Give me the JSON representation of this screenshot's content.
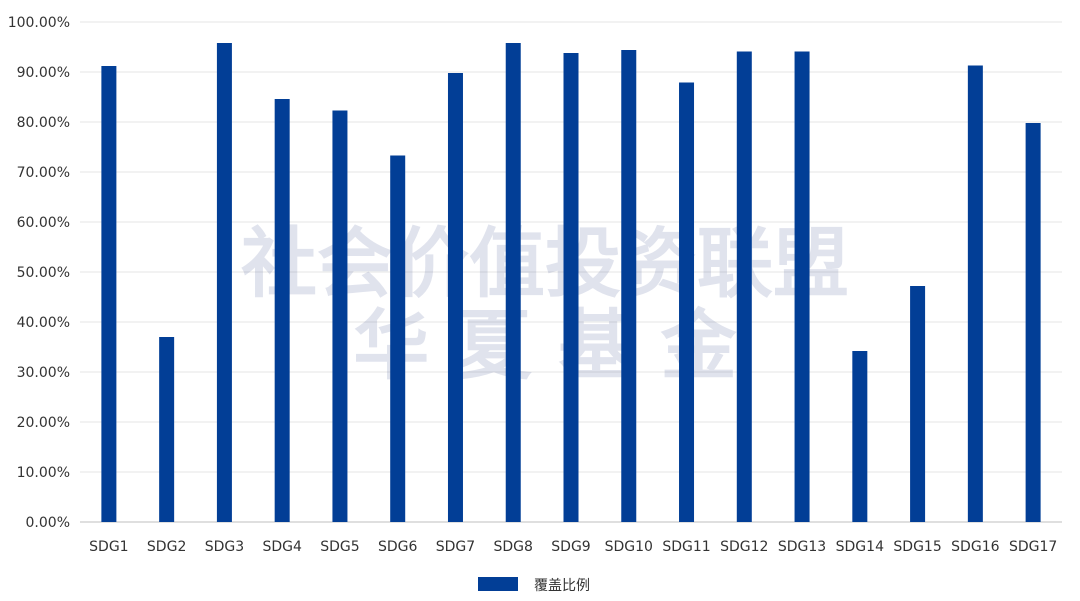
{
  "chart_data": {
    "type": "bar",
    "categories": [
      "SDG1",
      "SDG2",
      "SDG3",
      "SDG4",
      "SDG5",
      "SDG6",
      "SDG7",
      "SDG8",
      "SDG9",
      "SDG10",
      "SDG11",
      "SDG12",
      "SDG13",
      "SDG14",
      "SDG15",
      "SDG16",
      "SDG17"
    ],
    "series": [
      {
        "name": "覆盖比例",
        "values": [
          91.2,
          37.0,
          95.8,
          84.6,
          82.3,
          73.3,
          89.8,
          95.8,
          93.8,
          94.4,
          87.9,
          94.1,
          94.1,
          34.2,
          47.2,
          91.3,
          79.8
        ]
      }
    ],
    "yticks": [
      "0.00%",
      "10.00%",
      "20.00%",
      "30.00%",
      "40.00%",
      "50.00%",
      "60.00%",
      "70.00%",
      "80.00%",
      "90.00%",
      "100.00%"
    ],
    "ylim": [
      0,
      100
    ],
    "title": "",
    "xlabel": "",
    "ylabel": "",
    "grid": true,
    "legend_position": "bottom-center",
    "colors": {
      "bar": "#023e96",
      "grid": "#e6e6e6",
      "axis": "#bfbfbf",
      "text": "#333333"
    },
    "watermark": {
      "line1": "社会价值投资联盟",
      "line2": "华 夏 基 金"
    }
  }
}
